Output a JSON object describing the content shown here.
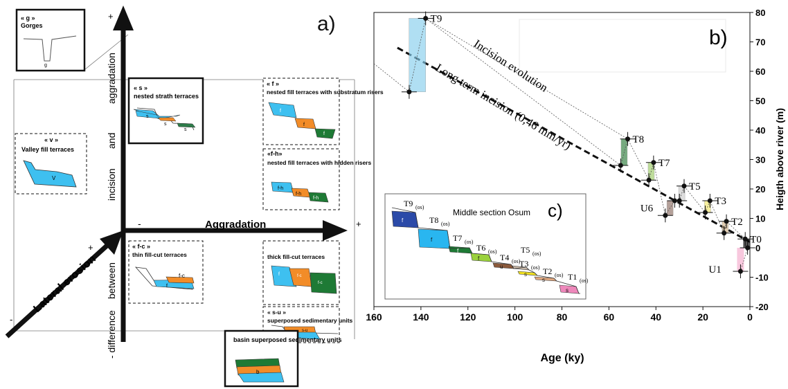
{
  "panel_a": {
    "letter": "a)",
    "plus_top": "+",
    "plus_right": "+",
    "minus_axis": "-",
    "plus_diag": "+",
    "minus_diag": "-",
    "vertical_axis": [
      "- difference",
      "between",
      "incision",
      "and",
      "aggradation"
    ],
    "horizontal_axis": "Aggradation",
    "diagonal_axis": "Lateral erosion",
    "boxes": {
      "g": {
        "code": "« g »",
        "title": "Gorges",
        "mark": "g"
      },
      "v": {
        "code": "« v »",
        "title": "Valley fill terraces",
        "mark": "V"
      },
      "s": {
        "code": "« s »",
        "title": "nested strath terraces",
        "mark": "s"
      },
      "f": {
        "code": "« f »",
        "title": "nested fill terraces with substratum risers",
        "mark": "f"
      },
      "fh": {
        "code": "«f-h»",
        "title": "nested fill terraces with hidden risers",
        "mark": "f-h"
      },
      "fc": {
        "code": "« f-c »",
        "title": "thin fill-cut terraces",
        "mark": "f-c",
        "mark2": "f"
      },
      "thick": {
        "code": "",
        "title": "thick fill-cut terraces",
        "mark": "f-c",
        "mark2": "f"
      },
      "su": {
        "code": "« s-u »",
        "title": "superposed sedimentary units",
        "mark": "s-u"
      },
      "b": {
        "code": "",
        "title": "basin superposed sedimentary units",
        "mark": "b"
      }
    }
  },
  "panel_b": {
    "letter": "b)",
    "chart_data": {
      "type": "scatter",
      "xlabel": "Age (ky)",
      "ylabel": "Heigth above river (m)",
      "xlim": [
        160,
        0
      ],
      "ylim": [
        -20,
        80
      ],
      "xticks": [
        160,
        140,
        120,
        100,
        80,
        60,
        40,
        20,
        0
      ],
      "yticks": [
        -20,
        -10,
        0,
        10,
        20,
        30,
        40,
        50,
        60,
        70,
        80
      ],
      "annotations": [
        "Incision evolution",
        "Long term incision (0,46 mm/yr)"
      ],
      "points": [
        {
          "label": "T9",
          "x": 138,
          "y": 78,
          "color": "#87cfee"
        },
        {
          "label": "",
          "x": 145,
          "y": 53,
          "color": "#87cfee"
        },
        {
          "label": "T8",
          "x": 52,
          "y": 37,
          "color": "#2e7d3c"
        },
        {
          "label": "",
          "x": 55,
          "y": 28,
          "color": "#2e7d3c"
        },
        {
          "label": "T7",
          "x": 41,
          "y": 29,
          "color": "#9ccc65"
        },
        {
          "label": "",
          "x": 43,
          "y": 23,
          "color": "#9ccc65"
        },
        {
          "label": "U6",
          "x": 36,
          "y": 11,
          "color": "#8d6e63"
        },
        {
          "label": "",
          "x": 32,
          "y": 16,
          "color": "#8d6e63"
        },
        {
          "label": "T5",
          "x": 28,
          "y": 21,
          "color": "#cccccc"
        },
        {
          "label": "",
          "x": 30,
          "y": 16,
          "color": "#cccccc"
        },
        {
          "label": "T3",
          "x": 17,
          "y": 16,
          "color": "#f2e86b"
        },
        {
          "label": "",
          "x": 19,
          "y": 12,
          "color": "#f2e86b"
        },
        {
          "label": "T2",
          "x": 10,
          "y": 9,
          "color": "#d2b48c"
        },
        {
          "label": "",
          "x": 11,
          "y": 5,
          "color": "#d2b48c"
        },
        {
          "label": "T0",
          "x": 2,
          "y": 3,
          "color": "#000000"
        },
        {
          "label": "",
          "x": 1,
          "y": 0,
          "color": "#000000"
        },
        {
          "label": "U1",
          "x": 4,
          "y": -8,
          "color": "#f5b6d3"
        }
      ],
      "trend": {
        "x": [
          150,
          0
        ],
        "y": [
          68,
          2
        ]
      }
    }
  },
  "panel_c": {
    "letter": "c)",
    "title": "Middle section Osum",
    "terraces": [
      {
        "label": "T9",
        "sub": "(os)",
        "color": "#2b4aa8",
        "mark": "f"
      },
      {
        "label": "T8",
        "sub": "(os)",
        "color": "#29b6f0",
        "mark": "f"
      },
      {
        "label": "T7",
        "sub": "(os)",
        "color": "#1e7a35",
        "mark": "f"
      },
      {
        "label": "T6",
        "sub": "(os)",
        "color": "#9ad13c",
        "mark": "f"
      },
      {
        "label": "T4",
        "sub": "(os)",
        "color": "#8b5a3c",
        "mark": "u"
      },
      {
        "label": "T5",
        "sub": "(os)",
        "color": "#c8b8a8",
        "mark": ""
      },
      {
        "label": "T3",
        "sub": "(os)",
        "color": "#f0e020",
        "mark": "s"
      },
      {
        "label": "T2",
        "sub": "(os)",
        "color": "#e0a880",
        "mark": "s"
      },
      {
        "label": "T1",
        "sub": "(os)",
        "color": "#ee88bb",
        "mark": "s"
      }
    ]
  }
}
